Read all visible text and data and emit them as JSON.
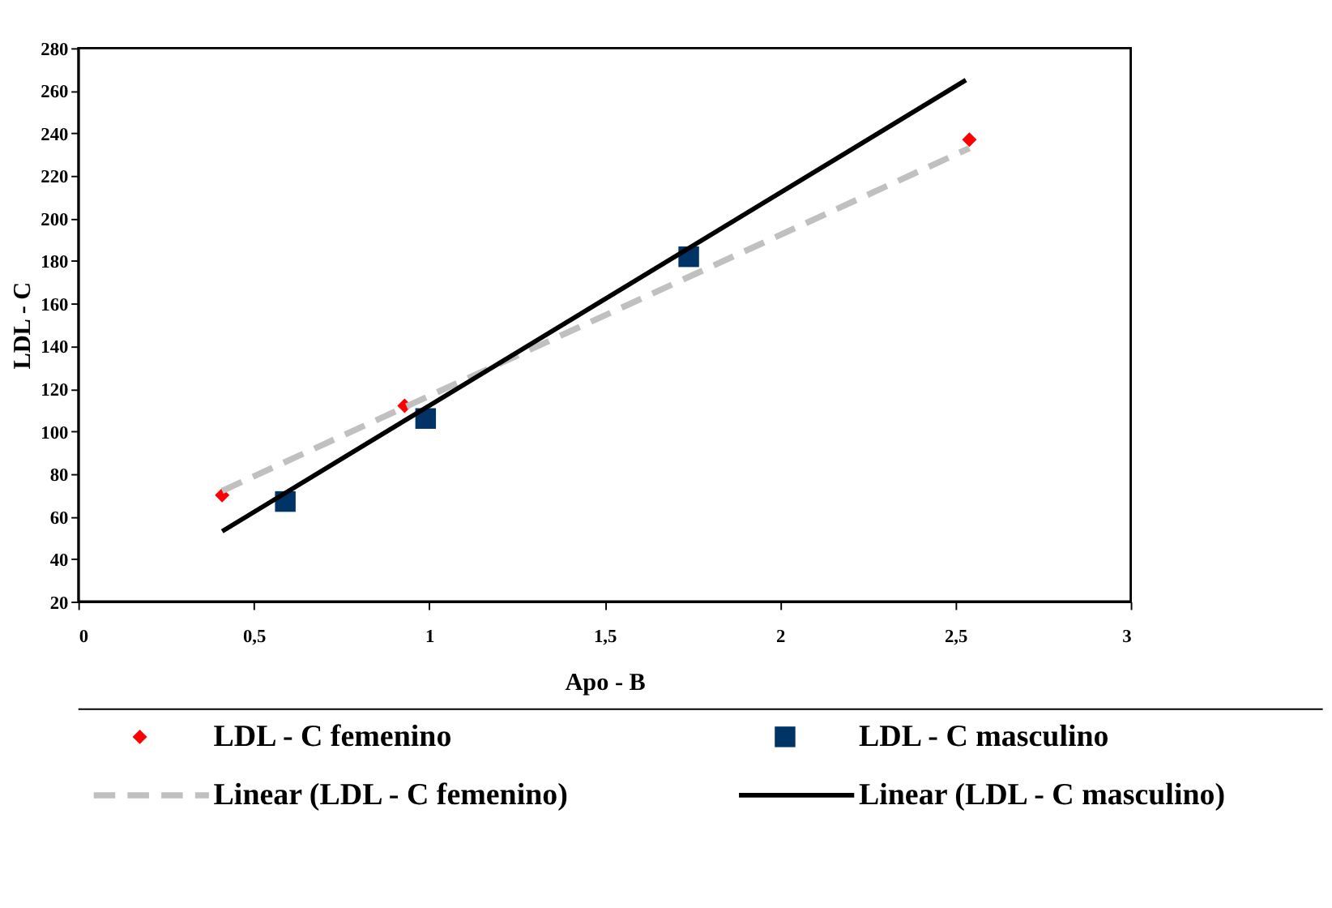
{
  "chart_data": {
    "type": "scatter",
    "xlabel": "Apo - B",
    "ylabel": "LDL - C",
    "series": [
      {
        "name": "LDL - C femenino",
        "type": "scatter",
        "marker": "diamond",
        "color": "#ff0000",
        "x": [
          0.41,
          0.93,
          2.54
        ],
        "values": [
          70,
          112,
          237
        ]
      },
      {
        "name": "LDL - C masculino",
        "type": "scatter",
        "marker": "square",
        "color": "#003366",
        "x": [
          0.59,
          0.99,
          1.74
        ],
        "values": [
          67,
          106,
          182
        ]
      },
      {
        "name": "Linear (LDL - C femenino)",
        "type": "line",
        "line_style": "dashed",
        "color": "#c0c0c0",
        "x": [
          0.41,
          2.54
        ],
        "values": [
          72,
          233
        ]
      },
      {
        "name": "Linear (LDL - C masculino)",
        "type": "line",
        "line_style": "solid",
        "color": "#000000",
        "x": [
          0.41,
          2.53
        ],
        "values": [
          53,
          265
        ]
      }
    ],
    "xlim": [
      0,
      3
    ],
    "ylim": [
      20,
      280
    ],
    "xticks": [
      0,
      {
        "value": 0.5,
        "label": "0,5"
      },
      1,
      {
        "value": 1.5,
        "label": "1,5"
      },
      2,
      {
        "value": 2.5,
        "label": "2,5"
      },
      3
    ],
    "yticks": [
      20,
      40,
      60,
      80,
      100,
      120,
      140,
      160,
      180,
      200,
      220,
      240,
      260,
      280
    ],
    "grid": false,
    "legend": "bottom"
  }
}
